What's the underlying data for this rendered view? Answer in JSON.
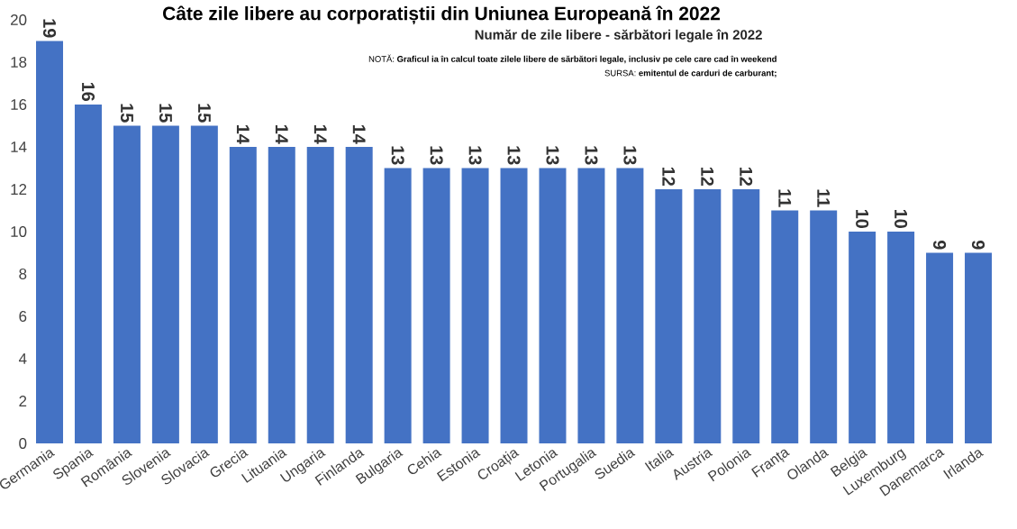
{
  "chart_data": {
    "type": "bar",
    "title": "Câte zile libere au corporatiștii din Uniunea Europeană în 2022",
    "subtitle": "Număr de zile libere - sărbători legale în 2022",
    "annotations": [
      "NOTĂ: **Graficul ia în calcul toate zilele libere de sărbători legale, inclusiv pe cele care cad în weekend**",
      "SURSA: **emitentul de carduri de carburant;**"
    ],
    "categories": [
      "Germania",
      "Spania",
      "România",
      "Slovenia",
      "Slovacia",
      "Grecia",
      "Lituania",
      "Ungaria",
      "Finlanda",
      "Bulgaria",
      "Cehia",
      "Estonia",
      "Croația",
      "Letonia",
      "Portugalia",
      "Suedia",
      "Italia",
      "Austria",
      "Polonia",
      "Franța",
      "Olanda",
      "Belgia",
      "Luxemburg",
      "Danemarca",
      "Irlanda"
    ],
    "values": [
      19,
      16,
      15,
      15,
      15,
      14,
      14,
      14,
      14,
      13,
      13,
      13,
      13,
      13,
      13,
      13,
      12,
      12,
      12,
      11,
      11,
      10,
      10,
      9,
      9
    ],
    "color": "#4472c4",
    "ylim": [
      0,
      20
    ],
    "yticks": [
      0,
      2,
      4,
      6,
      8,
      10,
      12,
      14,
      16,
      18,
      20
    ],
    "data_labels": true
  }
}
